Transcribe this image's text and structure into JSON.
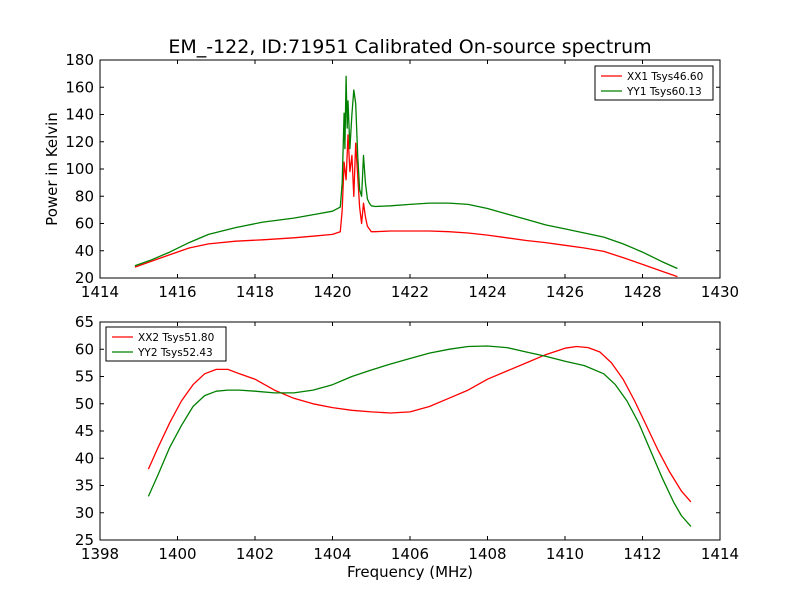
{
  "title": "EM_-122, ID:71951 Calibrated On-source spectrum",
  "chart_data": [
    {
      "type": "line",
      "ylabel": "Power in Kelvin",
      "xlabel": "",
      "xlim": [
        1414,
        1430
      ],
      "ylim": [
        20,
        180
      ],
      "xticks": [
        1414,
        1416,
        1418,
        1420,
        1422,
        1424,
        1426,
        1428,
        1430
      ],
      "yticks": [
        20,
        40,
        60,
        80,
        100,
        120,
        140,
        160,
        180
      ],
      "grid": false,
      "legend": "top-right",
      "series": [
        {
          "name": "XX1 Tsys46.60",
          "color": "#ff0000",
          "x": [
            1414.9,
            1415.3,
            1415.8,
            1416.3,
            1416.8,
            1417.5,
            1418.2,
            1419.0,
            1419.6,
            1420.0,
            1420.2,
            1420.25,
            1420.3,
            1420.35,
            1420.4,
            1420.45,
            1420.5,
            1420.55,
            1420.6,
            1420.65,
            1420.7,
            1420.75,
            1420.8,
            1420.85,
            1420.9,
            1420.95,
            1421.0,
            1421.1,
            1421.5,
            1422.0,
            1422.5,
            1423.0,
            1423.5,
            1424.0,
            1424.5,
            1425.0,
            1425.5,
            1426.0,
            1426.5,
            1427.0,
            1427.5,
            1428.0,
            1428.5,
            1428.9
          ],
          "values": [
            28,
            32,
            37,
            42,
            45,
            47,
            48,
            49.5,
            51,
            52,
            54,
            70,
            105,
            92,
            125,
            98,
            110,
            80,
            119,
            95,
            72,
            60,
            75,
            65,
            58,
            56,
            54,
            54,
            54.5,
            54.5,
            54.5,
            54,
            53,
            51.5,
            49.5,
            47.5,
            46,
            44,
            42,
            39.5,
            35,
            30,
            25,
            21
          ]
        },
        {
          "name": "YY1 Tsys60.13",
          "color": "#008000",
          "x": [
            1414.9,
            1415.3,
            1415.8,
            1416.3,
            1416.8,
            1417.5,
            1418.2,
            1419.0,
            1419.6,
            1420.0,
            1420.2,
            1420.25,
            1420.3,
            1420.32,
            1420.35,
            1420.38,
            1420.4,
            1420.45,
            1420.5,
            1420.55,
            1420.6,
            1420.65,
            1420.7,
            1420.75,
            1420.8,
            1420.85,
            1420.9,
            1420.95,
            1421.0,
            1421.1,
            1421.5,
            1422.0,
            1422.5,
            1423.0,
            1423.5,
            1424.0,
            1424.5,
            1425.0,
            1425.5,
            1426.0,
            1426.5,
            1427.0,
            1427.5,
            1428.0,
            1428.5,
            1428.9
          ],
          "values": [
            29,
            33,
            39,
            46,
            52,
            57,
            61,
            64,
            67,
            69,
            72,
            90,
            141,
            115,
            168,
            130,
            150,
            115,
            140,
            158,
            148,
            110,
            85,
            80,
            110,
            90,
            78,
            75,
            73,
            72.5,
            73,
            74,
            75,
            75,
            74,
            71,
            67,
            63,
            59,
            56,
            53,
            50,
            45,
            39,
            32,
            27
          ]
        }
      ]
    },
    {
      "type": "line",
      "ylabel": "",
      "xlabel": "Frequency (MHz)",
      "xlim": [
        1398,
        1414
      ],
      "ylim": [
        25,
        65
      ],
      "xticks": [
        1398,
        1400,
        1402,
        1404,
        1406,
        1408,
        1410,
        1412,
        1414
      ],
      "yticks": [
        25,
        30,
        35,
        40,
        45,
        50,
        55,
        60,
        65
      ],
      "grid": false,
      "legend": "top-left",
      "series": [
        {
          "name": "XX2 Tsys51.80",
          "color": "#ff0000",
          "x": [
            1399.25,
            1399.5,
            1399.8,
            1400.1,
            1400.4,
            1400.7,
            1401.0,
            1401.3,
            1401.6,
            1402.0,
            1402.5,
            1403.0,
            1403.5,
            1404.0,
            1404.5,
            1405.0,
            1405.5,
            1406.0,
            1406.5,
            1407.0,
            1407.5,
            1408.0,
            1408.5,
            1409.0,
            1409.5,
            1410.0,
            1410.3,
            1410.6,
            1410.9,
            1411.2,
            1411.5,
            1411.8,
            1412.1,
            1412.4,
            1412.7,
            1413.0,
            1413.25
          ],
          "values": [
            38,
            42,
            46.5,
            50.5,
            53.5,
            55.5,
            56.3,
            56.3,
            55.5,
            54.5,
            52.5,
            51,
            50,
            49.3,
            48.8,
            48.5,
            48.3,
            48.5,
            49.5,
            51,
            52.5,
            54.5,
            56,
            57.5,
            59,
            60.2,
            60.5,
            60.3,
            59.5,
            57.5,
            54.5,
            50.5,
            46,
            41.5,
            37.5,
            34,
            32
          ]
        },
        {
          "name": "YY2 Tsys52.43",
          "color": "#008000",
          "x": [
            1399.25,
            1399.5,
            1399.8,
            1400.1,
            1400.4,
            1400.7,
            1401.0,
            1401.3,
            1401.6,
            1402.0,
            1402.5,
            1403.0,
            1403.5,
            1404.0,
            1404.5,
            1405.0,
            1405.5,
            1406.0,
            1406.5,
            1407.0,
            1407.5,
            1408.0,
            1408.5,
            1409.0,
            1409.5,
            1410.0,
            1410.5,
            1411.0,
            1411.3,
            1411.6,
            1411.9,
            1412.2,
            1412.5,
            1412.8,
            1413.0,
            1413.25
          ],
          "values": [
            33,
            37,
            42,
            46,
            49.5,
            51.5,
            52.3,
            52.5,
            52.5,
            52.3,
            52.0,
            52.0,
            52.5,
            53.5,
            55,
            56.2,
            57.3,
            58.3,
            59.3,
            60.0,
            60.5,
            60.6,
            60.3,
            59.5,
            58.7,
            57.8,
            57.0,
            55.5,
            53.5,
            50.5,
            46.5,
            41.5,
            36.5,
            32,
            29.5,
            27.5
          ]
        }
      ]
    }
  ]
}
